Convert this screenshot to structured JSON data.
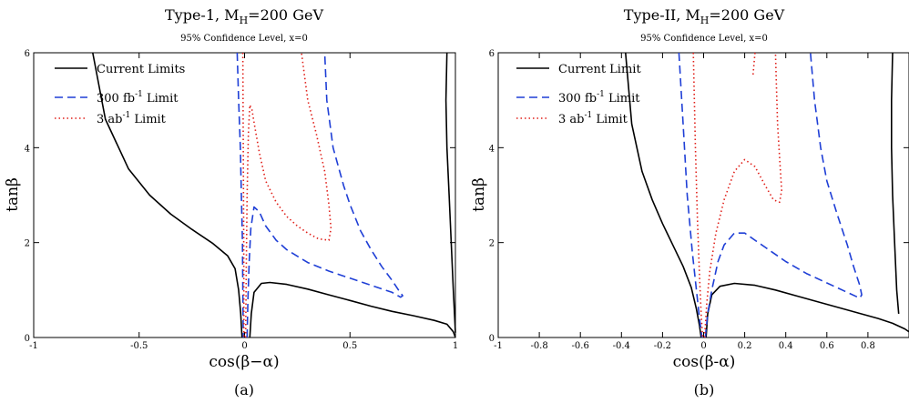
{
  "chart_data": [
    {
      "type": "line",
      "title": "Type-1, M",
      "title_sub": "H",
      "title_tail": "=200 GeV",
      "subtitle": "95% Confidence Level, x=0",
      "xlabel": "cos(β−α)",
      "ylabel": "tanβ",
      "xlim": [
        -1,
        1
      ],
      "ylim": [
        0,
        6
      ],
      "xticks": [
        "-1",
        "-0.5",
        "0",
        "0.5",
        "1"
      ],
      "xtick_values": [
        -1,
        -0.5,
        0,
        0.5,
        1
      ],
      "yticks": [
        "0",
        "2",
        "4",
        "6"
      ],
      "ytick_values": [
        0,
        2,
        4,
        6
      ],
      "caption": "(a)",
      "legend_position": "top-left",
      "series": [
        {
          "name": "Current Limits",
          "style": "solid",
          "color": "#000000",
          "segments": [
            [
              [
                -0.72,
                6.0
              ],
              [
                -0.66,
                4.6
              ],
              [
                -0.55,
                3.55
              ],
              [
                -0.45,
                3.0
              ],
              [
                -0.35,
                2.6
              ],
              [
                -0.25,
                2.28
              ],
              [
                -0.15,
                1.98
              ],
              [
                -0.08,
                1.72
              ],
              [
                -0.045,
                1.45
              ],
              [
                -0.028,
                1.0
              ],
              [
                -0.018,
                0.5
              ],
              [
                -0.012,
                0.0
              ]
            ],
            [
              [
                0.025,
                0.0
              ],
              [
                0.032,
                0.5
              ],
              [
                0.045,
                0.95
              ],
              [
                0.08,
                1.14
              ],
              [
                0.12,
                1.16
              ],
              [
                0.2,
                1.12
              ],
              [
                0.3,
                1.02
              ],
              [
                0.4,
                0.9
              ],
              [
                0.5,
                0.78
              ],
              [
                0.6,
                0.66
              ],
              [
                0.7,
                0.55
              ],
              [
                0.8,
                0.46
              ],
              [
                0.9,
                0.36
              ],
              [
                0.96,
                0.28
              ],
              [
                0.99,
                0.12
              ],
              [
                1.0,
                0.0
              ]
            ],
            [
              [
                0.96,
                6.0
              ],
              [
                0.955,
                5.0
              ],
              [
                0.96,
                4.0
              ],
              [
                0.97,
                3.0
              ],
              [
                0.98,
                2.0
              ],
              [
                0.99,
                1.0
              ],
              [
                0.998,
                0.3
              ],
              [
                1.0,
                0.1
              ]
            ]
          ]
        },
        {
          "name": "300 fb",
          "name_sup": "-1",
          "name_tail": " Limit",
          "style": "dashed",
          "color": "#1f3fd6",
          "segments": [
            [
              [
                -0.035,
                6.0
              ],
              [
                -0.028,
                5.0
              ],
              [
                -0.02,
                4.0
              ],
              [
                -0.015,
                3.0
              ],
              [
                -0.01,
                2.0
              ],
              [
                -0.008,
                1.0
              ],
              [
                -0.006,
                0.0
              ]
            ],
            [
              [
                0.012,
                0.0
              ],
              [
                0.016,
                0.8
              ],
              [
                0.022,
                1.6
              ],
              [
                0.03,
                2.3
              ],
              [
                0.045,
                2.75
              ],
              [
                0.07,
                2.65
              ],
              [
                0.1,
                2.35
              ],
              [
                0.15,
                2.05
              ],
              [
                0.2,
                1.85
              ],
              [
                0.3,
                1.58
              ],
              [
                0.4,
                1.4
              ],
              [
                0.5,
                1.25
              ],
              [
                0.6,
                1.1
              ],
              [
                0.7,
                0.95
              ],
              [
                0.74,
                0.85
              ],
              [
                0.75,
                0.88
              ],
              [
                0.73,
                1.0
              ],
              [
                0.7,
                1.2
              ],
              [
                0.65,
                1.5
              ],
              [
                0.6,
                1.85
              ],
              [
                0.55,
                2.25
              ],
              [
                0.5,
                2.8
              ],
              [
                0.47,
                3.2
              ],
              [
                0.42,
                4.0
              ],
              [
                0.39,
                5.0
              ],
              [
                0.38,
                6.0
              ]
            ]
          ]
        },
        {
          "name": "3 ab",
          "name_sup": "-1",
          "name_tail": " Limit",
          "style": "dotted",
          "color": "#e0201a",
          "segments": [
            [
              [
                -0.008,
                6.0
              ],
              [
                -0.006,
                4.0
              ],
              [
                -0.004,
                2.0
              ],
              [
                -0.003,
                0.0
              ]
            ],
            [
              [
                0.005,
                0.0
              ],
              [
                0.008,
                1.5
              ],
              [
                0.012,
                3.0
              ],
              [
                0.018,
                4.3
              ],
              [
                0.025,
                4.9
              ],
              [
                0.035,
                4.8
              ],
              [
                0.05,
                4.4
              ],
              [
                0.07,
                3.9
              ],
              [
                0.1,
                3.3
              ],
              [
                0.15,
                2.85
              ],
              [
                0.2,
                2.55
              ],
              [
                0.25,
                2.35
              ],
              [
                0.3,
                2.2
              ],
              [
                0.35,
                2.08
              ],
              [
                0.4,
                2.05
              ],
              [
                0.41,
                2.3
              ],
              [
                0.4,
                2.8
              ],
              [
                0.38,
                3.5
              ],
              [
                0.34,
                4.3
              ],
              [
                0.3,
                5.0
              ],
              [
                0.27,
                6.0
              ]
            ]
          ]
        }
      ]
    },
    {
      "type": "line",
      "title": "Type-II, M",
      "title_sub": "H",
      "title_tail": "=200 GeV",
      "subtitle": "95% Confidence Level, x=0",
      "xlabel": "cos(β-α)",
      "ylabel": "tanβ",
      "xlim": [
        -1,
        1
      ],
      "ylim": [
        0,
        6
      ],
      "xticks": [
        "-1",
        "-0.8",
        "-0.6",
        "-0.4",
        "-0.2",
        "0",
        "0.2",
        "0.4",
        "0.6",
        "0.8"
      ],
      "xtick_values": [
        -1,
        -0.8,
        -0.6,
        -0.4,
        -0.2,
        0,
        0.2,
        0.4,
        0.6,
        0.8
      ],
      "yticks": [
        "0",
        "2",
        "4",
        "6"
      ],
      "ytick_values": [
        0,
        2,
        4,
        6
      ],
      "caption": "(b)",
      "legend_position": "top-left",
      "series": [
        {
          "name": "Current Limit",
          "style": "solid",
          "color": "#000000",
          "segments": [
            [
              [
                -0.38,
                6.0
              ],
              [
                -0.35,
                4.5
              ],
              [
                -0.3,
                3.5
              ],
              [
                -0.25,
                2.9
              ],
              [
                -0.2,
                2.4
              ],
              [
                -0.15,
                1.95
              ],
              [
                -0.1,
                1.5
              ],
              [
                -0.06,
                1.05
              ],
              [
                -0.035,
                0.6
              ],
              [
                -0.02,
                0.25
              ],
              [
                -0.012,
                0.0
              ]
            ],
            [
              [
                0.012,
                0.0
              ],
              [
                0.02,
                0.5
              ],
              [
                0.04,
                0.9
              ],
              [
                0.08,
                1.08
              ],
              [
                0.15,
                1.14
              ],
              [
                0.25,
                1.1
              ],
              [
                0.35,
                1.0
              ],
              [
                0.45,
                0.88
              ],
              [
                0.55,
                0.76
              ],
              [
                0.65,
                0.64
              ],
              [
                0.75,
                0.52
              ],
              [
                0.85,
                0.4
              ],
              [
                0.92,
                0.3
              ],
              [
                0.98,
                0.18
              ],
              [
                1.0,
                0.12
              ]
            ],
            [
              [
                0.92,
                6.0
              ],
              [
                0.915,
                5.0
              ],
              [
                0.915,
                4.0
              ],
              [
                0.92,
                3.0
              ],
              [
                0.93,
                2.0
              ],
              [
                0.94,
                1.0
              ],
              [
                0.95,
                0.5
              ]
            ]
          ]
        },
        {
          "name": "300 fb",
          "name_sup": "-1",
          "name_tail": " Limit",
          "style": "dashed",
          "color": "#1f3fd6",
          "segments": [
            [
              [
                -0.12,
                6.0
              ],
              [
                -0.1,
                4.5
              ],
              [
                -0.08,
                3.0
              ],
              [
                -0.055,
                1.8
              ],
              [
                -0.035,
                1.0
              ],
              [
                -0.02,
                0.4
              ],
              [
                -0.008,
                0.0
              ]
            ],
            [
              [
                0.008,
                0.0
              ],
              [
                0.02,
                0.5
              ],
              [
                0.04,
                1.0
              ],
              [
                0.07,
                1.6
              ],
              [
                0.1,
                1.95
              ],
              [
                0.15,
                2.2
              ],
              [
                0.2,
                2.2
              ],
              [
                0.3,
                1.9
              ],
              [
                0.4,
                1.6
              ],
              [
                0.5,
                1.35
              ],
              [
                0.6,
                1.15
              ],
              [
                0.7,
                0.95
              ],
              [
                0.76,
                0.83
              ],
              [
                0.77,
                0.9
              ],
              [
                0.76,
                1.1
              ],
              [
                0.73,
                1.5
              ],
              [
                0.7,
                1.95
              ],
              [
                0.65,
                2.6
              ],
              [
                0.6,
                3.3
              ],
              [
                0.57,
                4.0
              ],
              [
                0.54,
                5.0
              ],
              [
                0.52,
                6.0
              ]
            ]
          ]
        },
        {
          "name": "3 ab",
          "name_sup": "-1",
          "name_tail": " Limit",
          "style": "dotted",
          "color": "#e0201a",
          "segments": [
            [
              [
                -0.05,
                6.0
              ],
              [
                -0.04,
                4.0
              ],
              [
                -0.03,
                2.5
              ],
              [
                -0.02,
                1.3
              ],
              [
                -0.012,
                0.5
              ],
              [
                -0.005,
                0.0
              ]
            ],
            [
              [
                0.005,
                0.0
              ],
              [
                0.015,
                0.7
              ],
              [
                0.03,
                1.4
              ],
              [
                0.06,
                2.2
              ],
              [
                0.1,
                2.9
              ],
              [
                0.15,
                3.5
              ],
              [
                0.2,
                3.75
              ],
              [
                0.25,
                3.6
              ],
              [
                0.3,
                3.2
              ],
              [
                0.34,
                2.9
              ],
              [
                0.37,
                2.85
              ],
              [
                0.38,
                3.1
              ],
              [
                0.37,
                3.8
              ],
              [
                0.36,
                4.5
              ],
              [
                0.355,
                5.2
              ],
              [
                0.35,
                6.0
              ]
            ],
            [
              [
                0.25,
                6.0
              ],
              [
                0.24,
                5.5
              ]
            ]
          ]
        }
      ]
    }
  ]
}
